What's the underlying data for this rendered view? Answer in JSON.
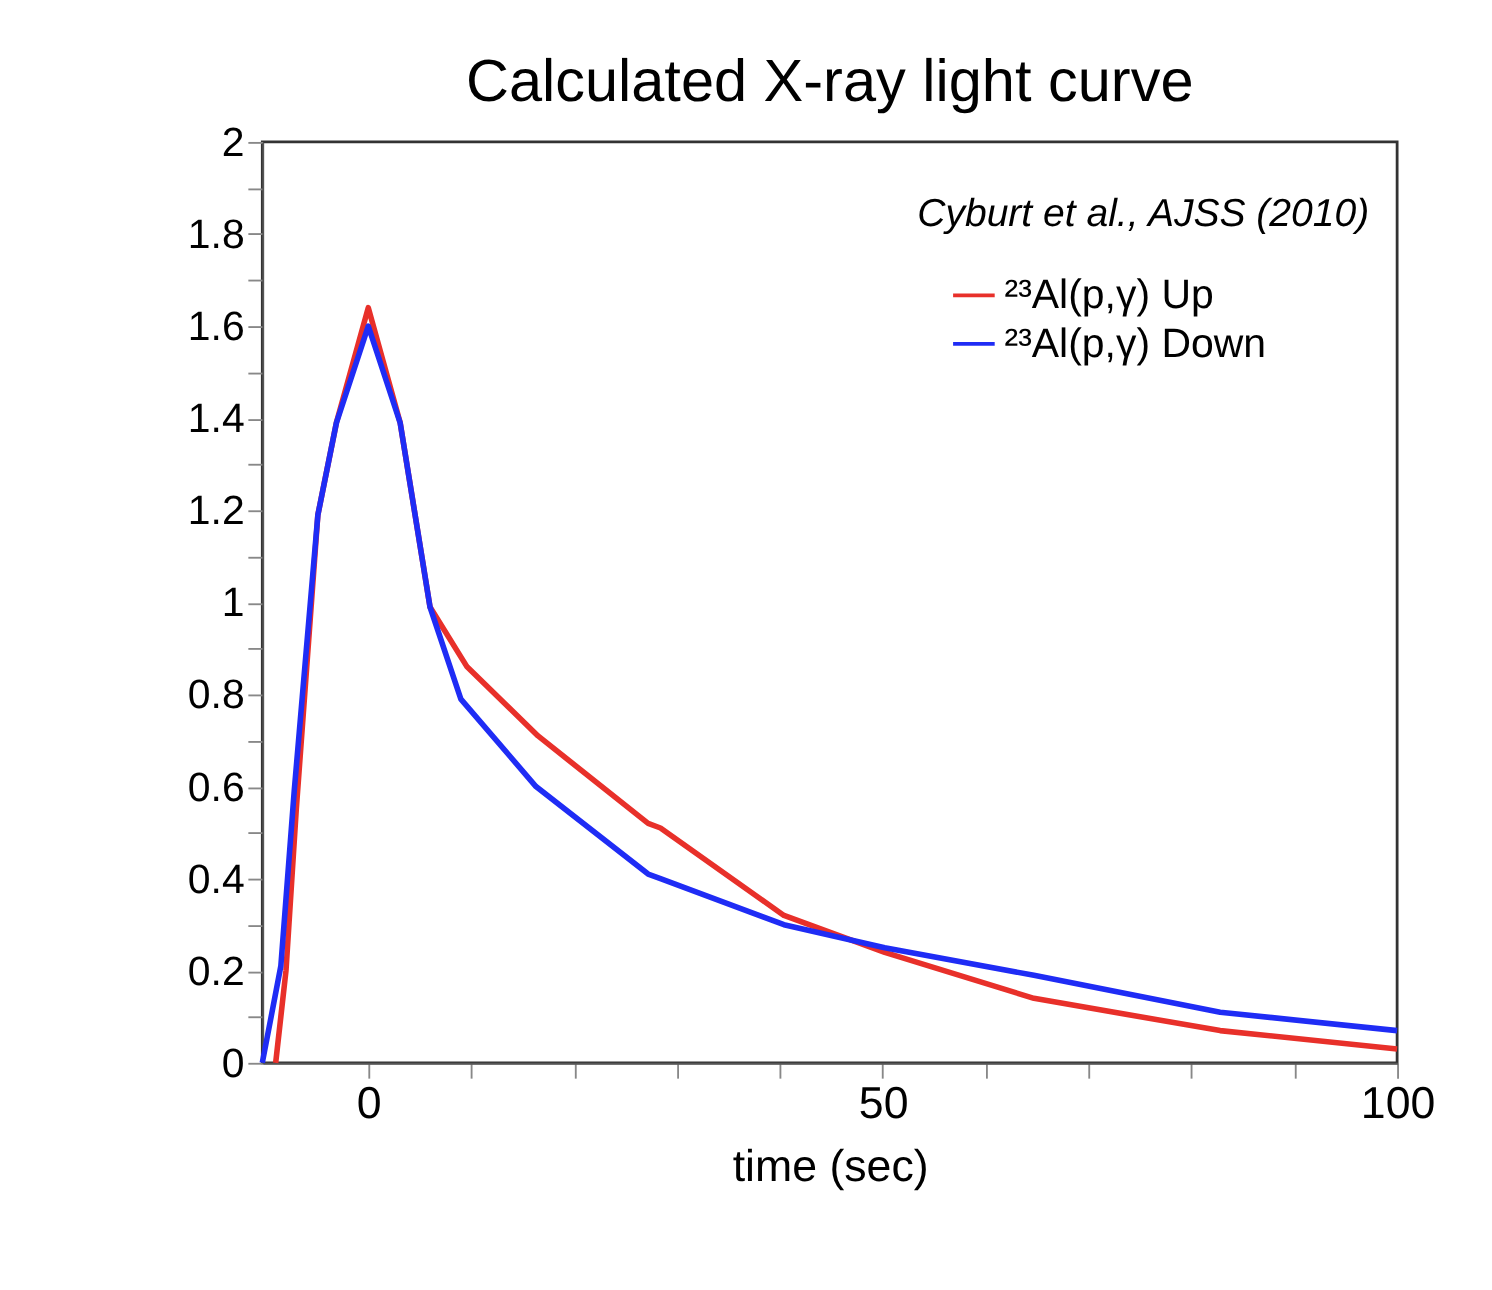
{
  "chart_data": {
    "type": "line",
    "title": "Calculated X-ray light curve",
    "xlabel": "time (sec)",
    "annotations": [
      "Cyburt et al., AJSS (2010)"
    ],
    "xlim": [
      -10.3,
      100
    ],
    "xticks": [
      0,
      {
        "value": 10,
        "label": null
      },
      {
        "value": 20,
        "label": null
      },
      {
        "value": 30,
        "label": null
      },
      {
        "value": 40,
        "label": null
      },
      50,
      {
        "value": 60,
        "label": null
      },
      {
        "value": 70,
        "label": null
      },
      {
        "value": 80,
        "label": null
      },
      {
        "value": 90,
        "label": null
      },
      100
    ],
    "ylim": [
      0,
      2
    ],
    "yticks": [
      0,
      {
        "value": 0.1,
        "label": null
      },
      0.2,
      {
        "value": 0.3,
        "label": null
      },
      0.4,
      {
        "value": 0.5,
        "label": null
      },
      0.6,
      {
        "value": 0.7,
        "label": null
      },
      0.8,
      {
        "value": 0.9,
        "label": null
      },
      1,
      {
        "value": 1.1,
        "label": null
      },
      1.2,
      {
        "value": 1.3,
        "label": null
      },
      1.4,
      {
        "value": 1.5,
        "label": null
      },
      1.6,
      {
        "value": 1.7,
        "label": null
      },
      1.8,
      {
        "value": 1.9,
        "label": null
      },
      2
    ],
    "grid": false,
    "legend": "top right",
    "marker": "none",
    "line_style": "solid",
    "series": [
      {
        "name": "²³Al(p,γ) Up",
        "color": "#e8302a",
        "x": [
          -9,
          -8,
          -7,
          -4.9,
          -3.1,
          0,
          3.1,
          6,
          9.6,
          16.5,
          27.2,
          28.4,
          40.4,
          50.2,
          64.7,
          82.8,
          100
        ],
        "values": [
          0,
          0.2,
          0.55,
          1.19,
          1.39,
          1.64,
          1.39,
          0.99,
          0.86,
          0.71,
          0.52,
          0.51,
          0.32,
          0.24,
          0.14,
          0.07,
          0.03
        ]
      },
      {
        "name": "²³Al(p,γ) Down",
        "color": "#1f2cf5",
        "x": [
          -10.3,
          -8.5,
          -7.2,
          -4.9,
          -3.1,
          0,
          3.1,
          6,
          9,
          16.3,
          27.2,
          28.4,
          40.4,
          50.2,
          64.7,
          82.8,
          100
        ],
        "values": [
          0,
          0.21,
          0.59,
          1.19,
          1.39,
          1.6,
          1.39,
          0.99,
          0.79,
          0.6,
          0.41,
          0.4,
          0.3,
          0.25,
          0.19,
          0.11,
          0.07
        ]
      }
    ]
  }
}
